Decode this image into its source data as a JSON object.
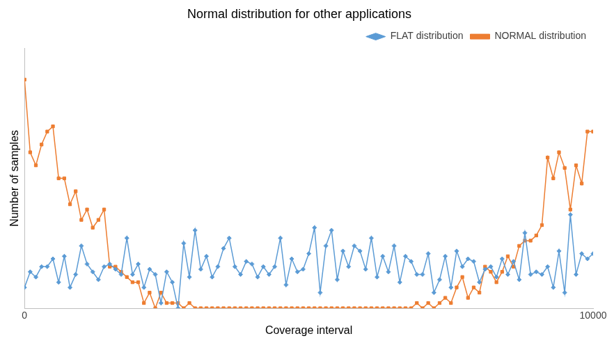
{
  "chart_data": {
    "type": "line",
    "title": "Normal distribution for other applications",
    "x_label": "Coverage interval",
    "y_label": "Number of samples",
    "x": [
      0,
      100,
      200,
      300,
      400,
      500,
      600,
      700,
      800,
      900,
      1000,
      1100,
      1200,
      1300,
      1400,
      1500,
      1600,
      1700,
      1800,
      1900,
      2000,
      2100,
      2200,
      2300,
      2400,
      2500,
      2600,
      2700,
      2800,
      2900,
      3000,
      3100,
      3200,
      3300,
      3400,
      3500,
      3600,
      3700,
      3800,
      3900,
      4000,
      4100,
      4200,
      4300,
      4400,
      4500,
      4600,
      4700,
      4800,
      4900,
      5000,
      5100,
      5200,
      5300,
      5400,
      5500,
      5600,
      5700,
      5800,
      5900,
      6000,
      6100,
      6200,
      6300,
      6400,
      6500,
      6600,
      6700,
      6800,
      6900,
      7000,
      7100,
      7200,
      7300,
      7400,
      7500,
      7600,
      7700,
      7800,
      7900,
      8000,
      8100,
      8200,
      8300,
      8400,
      8500,
      8600,
      8700,
      8800,
      8900,
      9000,
      9100,
      9200,
      9300,
      9400,
      9500,
      9600,
      9700,
      9800,
      9900,
      10000
    ],
    "series": [
      {
        "name": "FLAT distribution",
        "color": "#5b9bd5",
        "marker": "diamond",
        "line_style": "solid",
        "values": [
          8,
          14,
          12,
          16,
          16,
          19,
          10,
          20,
          8,
          13,
          24,
          17,
          14,
          11,
          16,
          17,
          15,
          13,
          27,
          13,
          17,
          8,
          15,
          13,
          2,
          14,
          10,
          0,
          25,
          12,
          30,
          15,
          20,
          12,
          16,
          23,
          27,
          16,
          13,
          18,
          17,
          12,
          16,
          13,
          16,
          27,
          9,
          19,
          14,
          15,
          21,
          31,
          6,
          24,
          30,
          11,
          22,
          16,
          24,
          22,
          15,
          27,
          12,
          20,
          14,
          24,
          10,
          20,
          18,
          13,
          13,
          21,
          6,
          11,
          20,
          8,
          22,
          16,
          19,
          18,
          10,
          15,
          16,
          12,
          19,
          13,
          18,
          11,
          29,
          13,
          14,
          13,
          16,
          8,
          22,
          6,
          36,
          13,
          21,
          19,
          21
        ]
      },
      {
        "name": "NORMAL distribution",
        "color": "#ed7d31",
        "marker": "square",
        "line_style": "solid",
        "values": [
          88,
          60,
          55,
          63,
          68,
          70,
          50,
          50,
          40,
          45,
          34,
          38,
          31,
          34,
          38,
          16,
          16,
          14,
          12,
          10,
          10,
          2,
          6,
          0,
          6,
          2,
          2,
          2,
          0,
          2,
          0,
          0,
          0,
          0,
          0,
          0,
          0,
          0,
          0,
          0,
          0,
          0,
          0,
          0,
          0,
          0,
          0,
          0,
          0,
          0,
          0,
          0,
          0,
          0,
          0,
          0,
          0,
          0,
          0,
          0,
          0,
          0,
          0,
          0,
          0,
          0,
          0,
          0,
          0,
          2,
          0,
          2,
          0,
          2,
          4,
          2,
          8,
          12,
          4,
          8,
          6,
          16,
          14,
          10,
          14,
          20,
          16,
          24,
          26,
          26,
          28,
          32,
          58,
          50,
          60,
          54,
          38,
          55,
          48,
          68,
          68
        ]
      }
    ],
    "xlim": [
      0,
      10000
    ],
    "xticks": [
      0,
      10000
    ],
    "ylim": [
      0,
      100
    ],
    "tick_labels": "x",
    "grid": false,
    "legend": "upper right"
  }
}
